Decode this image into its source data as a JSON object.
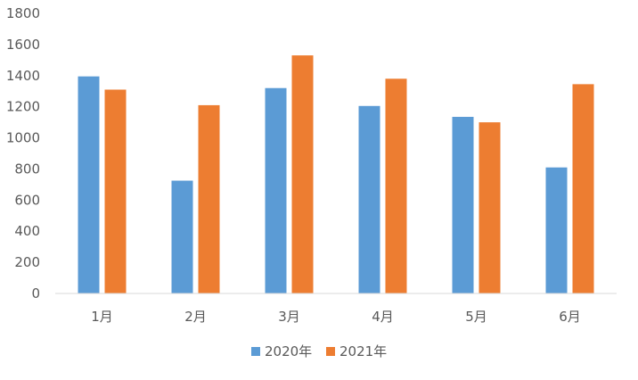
{
  "chart_data": {
    "type": "bar",
    "title": "",
    "xlabel": "",
    "ylabel": "",
    "categories": [
      "1月",
      "2月",
      "3月",
      "4月",
      "5月",
      "6月"
    ],
    "series": [
      {
        "name": "2020年",
        "color": "#5b9bd5",
        "values": [
          1395,
          725,
          1320,
          1205,
          1135,
          810
        ]
      },
      {
        "name": "2021年",
        "color": "#ed7d31",
        "values": [
          1310,
          1210,
          1530,
          1380,
          1100,
          1345
        ]
      }
    ],
    "ylim": [
      0,
      1800
    ],
    "yticks": [
      0,
      200,
      400,
      600,
      800,
      1000,
      1200,
      1400,
      1600,
      1800
    ],
    "grid": false,
    "legend": "bottom"
  }
}
